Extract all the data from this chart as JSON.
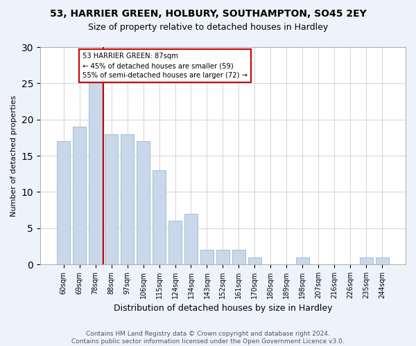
{
  "title1": "53, HARRIER GREEN, HOLBURY, SOUTHAMPTON, SO45 2EY",
  "title2": "Size of property relative to detached houses in Hardley",
  "xlabel": "Distribution of detached houses by size in Hardley",
  "ylabel": "Number of detached properties",
  "categories": [
    "60sqm",
    "69sqm",
    "78sqm",
    "88sqm",
    "97sqm",
    "106sqm",
    "115sqm",
    "124sqm",
    "134sqm",
    "143sqm",
    "152sqm",
    "161sqm",
    "170sqm",
    "180sqm",
    "189sqm",
    "198sqm",
    "207sqm",
    "216sqm",
    "226sqm",
    "235sqm",
    "244sqm"
  ],
  "values": [
    17,
    19,
    25,
    18,
    18,
    17,
    13,
    6,
    7,
    2,
    2,
    2,
    1,
    0,
    0,
    1,
    0,
    0,
    0,
    1,
    1
  ],
  "bar_color": "#c8d8ea",
  "bar_edge_color": "#9ab5cc",
  "vline_x": 2.5,
  "vline_color": "#cc0000",
  "annotation_text": "53 HARRIER GREEN: 87sqm\n← 45% of detached houses are smaller (59)\n55% of semi-detached houses are larger (72) →",
  "annotation_box_color": "#ffffff",
  "annotation_box_edge": "#cc0000",
  "ylim": [
    0,
    30
  ],
  "yticks": [
    0,
    5,
    10,
    15,
    20,
    25,
    30
  ],
  "footer": "Contains HM Land Registry data © Crown copyright and database right 2024.\nContains public sector information licensed under the Open Government Licence v3.0.",
  "bg_color": "#eef2fa",
  "plot_bg_color": "#ffffff",
  "title1_fontsize": 10,
  "title2_fontsize": 9,
  "ylabel_fontsize": 8,
  "xlabel_fontsize": 9,
  "tick_fontsize": 7,
  "footer_fontsize": 6.5
}
